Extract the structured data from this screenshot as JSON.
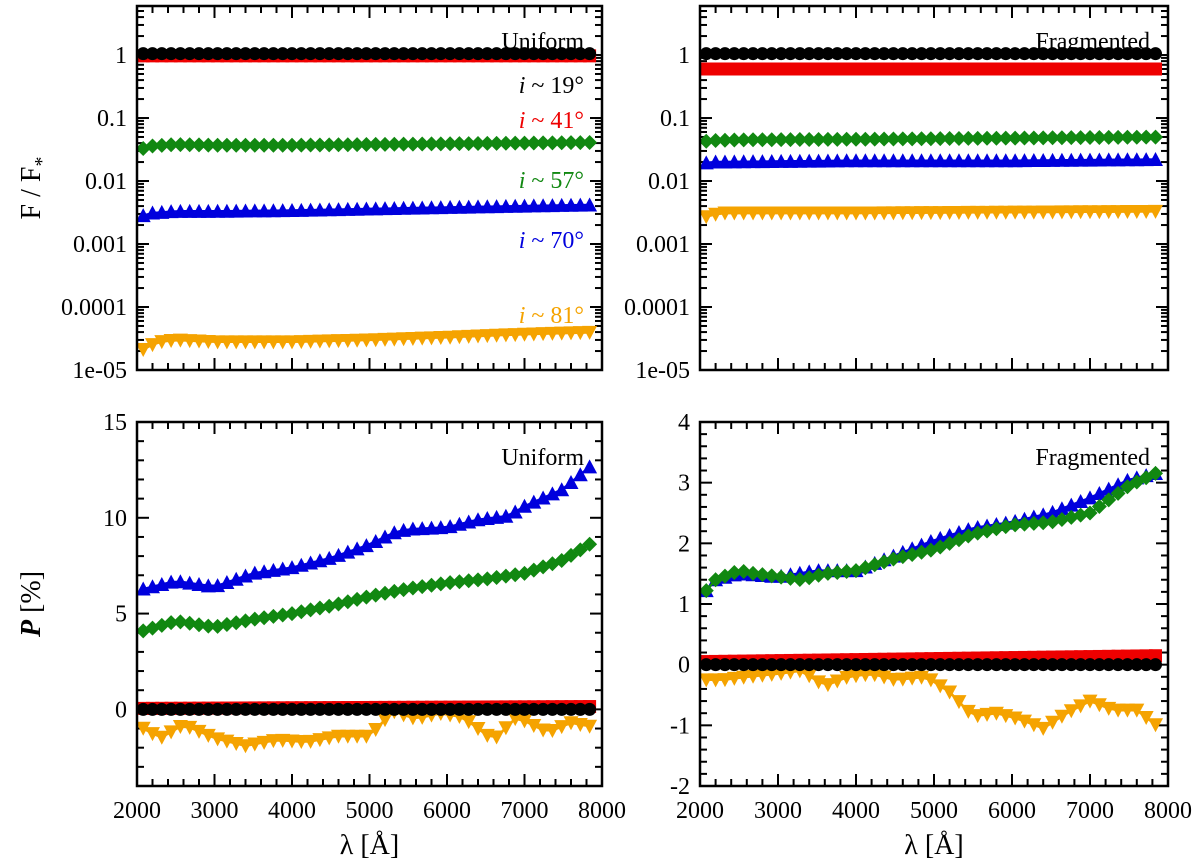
{
  "chart_data": [
    {
      "type": "line",
      "panel": "top-left",
      "title": "Uniform",
      "xlabel": "",
      "ylabel": "F / F*",
      "yscale": "log",
      "xlim": [
        2000,
        8000
      ],
      "ylim": [
        1e-05,
        6
      ],
      "ytick_labels": [
        "1e-05",
        "0.0001",
        "0.001",
        "0.01",
        "0.1",
        "1"
      ],
      "annotations": [
        {
          "text": "i ~ 19°",
          "color": "#000000"
        },
        {
          "text": "i ~ 41°",
          "color": "#ee0000"
        },
        {
          "text": "i ~ 57°",
          "color": "#118811"
        },
        {
          "text": "i ~ 70°",
          "color": "#0000dd"
        },
        {
          "text": "i ~ 81°",
          "color": "#f5a300"
        }
      ],
      "series": [
        {
          "color": "#000000",
          "marker": "circle",
          "x": [
            2000,
            8000
          ],
          "y": [
            1.05,
            1.05
          ]
        },
        {
          "color": "#ee0000",
          "marker": "square",
          "x": [
            2000,
            8000
          ],
          "y": [
            0.97,
            0.97
          ]
        },
        {
          "color": "#118811",
          "marker": "diamond",
          "x": [
            2000,
            2100,
            2200,
            2350,
            2500,
            3000,
            4000,
            5000,
            6000,
            7000,
            8000
          ],
          "y": [
            0.028,
            0.034,
            0.036,
            0.037,
            0.038,
            0.037,
            0.037,
            0.038,
            0.039,
            0.04,
            0.041
          ]
        },
        {
          "color": "#0000dd",
          "marker": "triangle-up",
          "x": [
            2000,
            2100,
            2200,
            2350,
            2500,
            3000,
            4000,
            5000,
            6000,
            7000,
            8000
          ],
          "y": [
            0.0025,
            0.0029,
            0.0031,
            0.0032,
            0.0033,
            0.0033,
            0.0034,
            0.0036,
            0.0038,
            0.004,
            0.0042
          ]
        },
        {
          "color": "#f5a300",
          "marker": "triangle-down",
          "x": [
            2000,
            2150,
            2300,
            2500,
            3000,
            4000,
            5000,
            6000,
            7000,
            8000
          ],
          "y": [
            1.8e-05,
            2.4e-05,
            2.8e-05,
            3e-05,
            2.8e-05,
            2.8e-05,
            3e-05,
            3.3e-05,
            3.7e-05,
            4e-05
          ]
        }
      ]
    },
    {
      "type": "line",
      "panel": "top-right",
      "title": "Fragmented",
      "xlabel": "",
      "ylabel": "",
      "yscale": "log",
      "xlim": [
        2000,
        8000
      ],
      "ylim": [
        1e-05,
        6
      ],
      "ytick_labels": [
        "1e-05",
        "0.0001",
        "0.001",
        "0.01",
        "0.1",
        "1"
      ],
      "series": [
        {
          "color": "#000000",
          "marker": "circle",
          "x": [
            2000,
            8000
          ],
          "y": [
            1.05,
            1.05
          ]
        },
        {
          "color": "#ee0000",
          "marker": "square",
          "x": [
            2000,
            8000
          ],
          "y": [
            0.6,
            0.6
          ]
        },
        {
          "color": "#118811",
          "marker": "diamond",
          "x": [
            2000,
            2200,
            2500,
            4000,
            6000,
            8000
          ],
          "y": [
            0.042,
            0.044,
            0.045,
            0.046,
            0.048,
            0.05
          ]
        },
        {
          "color": "#0000dd",
          "marker": "triangle-up",
          "x": [
            2000,
            2200,
            4000,
            6000,
            8000
          ],
          "y": [
            0.019,
            0.02,
            0.021,
            0.021,
            0.022
          ]
        },
        {
          "color": "#f5a300",
          "marker": "triangle-down",
          "x": [
            2000,
            2150,
            2300,
            2500,
            4000,
            6000,
            8000
          ],
          "y": [
            0.0025,
            0.0029,
            0.0031,
            0.0031,
            0.0031,
            0.0032,
            0.0033
          ]
        }
      ]
    },
    {
      "type": "line",
      "panel": "bottom-left",
      "title": "Uniform",
      "xlabel": "λ [Å]",
      "ylabel": "P [%]",
      "xlim": [
        2000,
        8000
      ],
      "ylim": [
        -4,
        15
      ],
      "yticks": [
        0,
        5,
        10,
        15
      ],
      "series": [
        {
          "color": "#000000",
          "marker": "circle",
          "x": [
            2000,
            8000
          ],
          "y": [
            0,
            0
          ]
        },
        {
          "color": "#ee0000",
          "marker": "square",
          "x": [
            2000,
            8000
          ],
          "y": [
            0.05,
            0.15
          ]
        },
        {
          "color": "#118811",
          "marker": "diamond",
          "x": [
            2000,
            2500,
            3000,
            3500,
            4000,
            4500,
            5000,
            5500,
            6000,
            6500,
            7000,
            7500,
            8000
          ],
          "y": [
            4.0,
            4.6,
            4.3,
            4.7,
            5.0,
            5.4,
            5.9,
            6.3,
            6.6,
            6.8,
            7.1,
            7.8,
            9.0
          ]
        },
        {
          "color": "#0000dd",
          "marker": "triangle-up",
          "x": [
            2000,
            2500,
            3000,
            3500,
            4000,
            4500,
            5000,
            5300,
            5500,
            6000,
            6400,
            6800,
            7000,
            7500,
            8000
          ],
          "y": [
            6.2,
            6.7,
            6.4,
            7.1,
            7.4,
            7.9,
            8.6,
            9.2,
            9.4,
            9.5,
            9.9,
            10.1,
            10.6,
            11.5,
            13.2
          ]
        },
        {
          "color": "#f5a300",
          "marker": "triangle-down",
          "x": [
            2000,
            2300,
            2600,
            3000,
            3400,
            3800,
            4200,
            4600,
            5000,
            5300,
            5600,
            5900,
            6200,
            6600,
            6900,
            7300,
            7600,
            8000
          ],
          "y": [
            -0.8,
            -1.5,
            -0.8,
            -1.5,
            -1.9,
            -1.6,
            -1.7,
            -1.4,
            -1.4,
            -0.1,
            -0.5,
            -0.2,
            -0.4,
            -1.6,
            -0.4,
            -1.2,
            -0.7,
            -1.0
          ]
        }
      ]
    },
    {
      "type": "line",
      "panel": "bottom-right",
      "title": "Fragmented",
      "xlabel": "λ [Å]",
      "ylabel": "",
      "xlim": [
        2000,
        8000
      ],
      "ylim": [
        -2,
        4
      ],
      "yticks": [
        -2,
        -1,
        0,
        1,
        2,
        3,
        4
      ],
      "series": [
        {
          "color": "#000000",
          "marker": "circle",
          "x": [
            2000,
            8000
          ],
          "y": [
            0,
            0
          ]
        },
        {
          "color": "#ee0000",
          "marker": "square",
          "x": [
            2000,
            8000
          ],
          "y": [
            0.05,
            0.15
          ]
        },
        {
          "color": "#118811",
          "marker": "diamond",
          "x": [
            2000,
            2200,
            2500,
            2700,
            3000,
            3300,
            3600,
            4000,
            4500,
            5000,
            5500,
            6000,
            6500,
            7000,
            7500,
            8000
          ],
          "y": [
            1.1,
            1.4,
            1.55,
            1.5,
            1.45,
            1.4,
            1.5,
            1.55,
            1.75,
            1.9,
            2.15,
            2.3,
            2.35,
            2.5,
            2.95,
            3.25
          ]
        },
        {
          "color": "#0000dd",
          "marker": "triangle-up",
          "x": [
            2000,
            2200,
            2500,
            3000,
            3500,
            4000,
            4500,
            5000,
            5500,
            6000,
            6500,
            7000,
            7500,
            8000
          ],
          "y": [
            1.1,
            1.4,
            1.5,
            1.45,
            1.55,
            1.55,
            1.8,
            2.05,
            2.25,
            2.35,
            2.5,
            2.75,
            3.05,
            3.2
          ]
        },
        {
          "color": "#f5a300",
          "marker": "triangle-down",
          "x": [
            2000,
            2300,
            2600,
            3000,
            3300,
            3600,
            3900,
            4200,
            4500,
            4900,
            5200,
            5500,
            5800,
            6100,
            6400,
            6700,
            7000,
            7300,
            7600,
            8000
          ],
          "y": [
            -0.25,
            -0.25,
            -0.2,
            -0.15,
            -0.1,
            -0.35,
            -0.2,
            -0.15,
            -0.25,
            -0.2,
            -0.45,
            -0.85,
            -0.8,
            -0.9,
            -1.05,
            -0.8,
            -0.6,
            -0.75,
            -0.75,
            -1.15
          ]
        }
      ]
    }
  ]
}
